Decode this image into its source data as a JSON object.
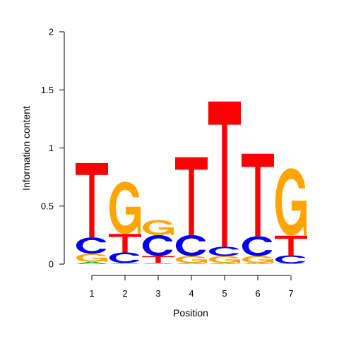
{
  "chart_data": {
    "type": "sequence-logo",
    "xlabel": "Position",
    "ylabel": "Information content",
    "ylim": [
      0,
      2
    ],
    "yticks": [
      "0",
      "0.5",
      "1",
      "1.5",
      "2"
    ],
    "positions": [
      "1",
      "2",
      "3",
      "4",
      "5",
      "6",
      "7"
    ],
    "colors": {
      "A": "#00c000",
      "C": "#0000ee",
      "G": "#ffa500",
      "T": "#ff0000"
    },
    "stacks": [
      [
        {
          "letter": "A",
          "height": 0.02
        },
        {
          "letter": "G",
          "height": 0.07
        },
        {
          "letter": "C",
          "height": 0.14
        },
        {
          "letter": "T",
          "height": 0.64
        }
      ],
      [
        {
          "letter": "A",
          "height": 0.01
        },
        {
          "letter": "C",
          "height": 0.09
        },
        {
          "letter": "T",
          "height": 0.16
        },
        {
          "letter": "G",
          "height": 0.45
        }
      ],
      [
        {
          "letter": "A",
          "height": 0.01
        },
        {
          "letter": "T",
          "height": 0.06
        },
        {
          "letter": "C",
          "height": 0.18
        },
        {
          "letter": "G",
          "height": 0.13
        }
      ],
      [
        {
          "letter": "A",
          "height": 0.01
        },
        {
          "letter": "G",
          "height": 0.06
        },
        {
          "letter": "C",
          "height": 0.18
        },
        {
          "letter": "T",
          "height": 0.67
        }
      ],
      [
        {
          "letter": "A",
          "height": 0.01
        },
        {
          "letter": "G",
          "height": 0.06
        },
        {
          "letter": "C",
          "height": 0.08
        },
        {
          "letter": "T",
          "height": 1.25
        }
      ],
      [
        {
          "letter": "A",
          "height": 0.01
        },
        {
          "letter": "G",
          "height": 0.06
        },
        {
          "letter": "C",
          "height": 0.17
        },
        {
          "letter": "T",
          "height": 0.71
        }
      ],
      [
        {
          "letter": "A",
          "height": 0.005
        },
        {
          "letter": "C",
          "height": 0.07
        },
        {
          "letter": "T",
          "height": 0.17
        },
        {
          "letter": "G",
          "height": 0.58
        }
      ]
    ]
  }
}
